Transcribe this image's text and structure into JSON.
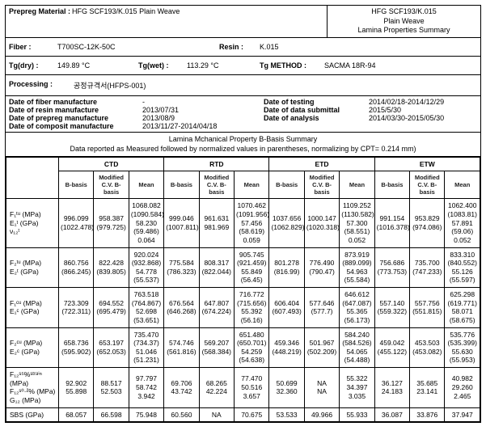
{
  "header": {
    "prepreg_label": "Prepreg Material :",
    "prepreg_value": "HFG SCF193/K.015 Plain Weave",
    "top_right_line1": "HFG SCF193/K.015",
    "top_right_line2": "Plain Weave",
    "top_right_line3": "Lamina Properties Summary",
    "fiber_label": "Fiber  :",
    "fiber_value": "T700SC-12K-50C",
    "resin_label": "Resin :",
    "resin_value": "K.015",
    "tg_dry_label": "Tg(dry) :",
    "tg_dry_value": "149.89 °C",
    "tg_wet_label": "Tg(wet) :",
    "tg_wet_value": "113.29 °C",
    "tg_method_label": "Tg METHOD :",
    "tg_method_value": "SACMA 18R-94",
    "processing_label": "Processing :",
    "processing_value": "공정규격서(HFPS-001)"
  },
  "dates": {
    "fiber_mfg_label": "Date of fiber manufacture",
    "fiber_mfg_value": "-",
    "resin_mfg_label": "Date of resin manufacture",
    "resin_mfg_value": "2013/07/31",
    "prepreg_mfg_label": "Date of prepreg manufacture",
    "prepreg_mfg_value": "2013/08/9",
    "composit_mfg_label": "Date of composit manufacture",
    "composit_mfg_value": "2013/11/27-2014/04/18",
    "testing_label": "Date of testing",
    "testing_value": "2014/02/18-2014/12/29",
    "submittal_label": "Date of data submittal",
    "submittal_value": "2015/5/30",
    "analysis_label": "Date of analysis",
    "analysis_value": "2014/03/30-2015/05/30"
  },
  "summary_title": "Lamina Mchanical Property B-Basis Summary",
  "summary_sub": "Data reported as Measured followed by normalized values in parentheses, normalizing by CPT= 0.214 mm)",
  "env_headers": [
    "CTD",
    "RTD",
    "ETD",
    "ETW"
  ],
  "sub_headers": [
    "B-basis",
    "Modified C.V. B-basis",
    "Mean"
  ],
  "rows": [
    {
      "labels": [
        "F₁ᵗᵘ (MPa)",
        "E₁ᵗ (GPa)",
        "ν₁₂ᵗ"
      ],
      "cells": [
        [
          "996.099",
          "(1022.478)"
        ],
        [
          "958.387",
          "(979.725)"
        ],
        [
          "1068.082",
          "(1090.584)",
          "58.230",
          "(59.486)",
          "0.064"
        ],
        [
          "999.046",
          "(1007.811)"
        ],
        [
          "961.631",
          "981.969"
        ],
        [
          "1070.462",
          "(1091.956)",
          "57.456",
          "(58.619)",
          "0.059"
        ],
        [
          "1037.656",
          "(1062.829)"
        ],
        [
          "1000.147",
          "(1020.318)"
        ],
        [
          "1109.252",
          "(1130.582)",
          "57.300",
          "(58.551)",
          "0.052"
        ],
        [
          "991.154",
          "(1016.378)"
        ],
        [
          "953.829",
          "(974.086)"
        ],
        [
          "1062.400",
          "(1083.81)",
          "57.891",
          "(59.06)",
          "0.052"
        ]
      ]
    },
    {
      "labels": [
        "F₂ᵗᵘ (MPa)",
        "E₂ᵗ (GPa)"
      ],
      "cells": [
        [
          "860.756",
          "(866.245)"
        ],
        [
          "822.428",
          "(839.805)"
        ],
        [
          "920.024",
          "(932.868)",
          "54.778",
          "(55.537)"
        ],
        [
          "775.584",
          "(786.323)"
        ],
        [
          "808.317",
          "(822.044)"
        ],
        [
          "905.745",
          "(921.459)",
          "55.849",
          "(56.45)"
        ],
        [
          "801.278",
          "(816.99)"
        ],
        [
          "776.490",
          "(790.47)"
        ],
        [
          "873.919",
          "(889.099)",
          "54.963",
          "(55.584)"
        ],
        [
          "756.686",
          "(773.753)"
        ],
        [
          "735.700",
          "(747.233)"
        ],
        [
          "833.310",
          "(840.552)",
          "55.126",
          "(55.597)"
        ]
      ]
    },
    {
      "labels": [
        "F₁ᶜᵘ (MPa)",
        "E₁ᶜ (GPa)"
      ],
      "cells": [
        [
          "723.309",
          "(722.311)"
        ],
        [
          "694.552",
          "(695.479)"
        ],
        [
          "763.518",
          "(764.867)",
          "52.698",
          "(53.651)"
        ],
        [
          "676.564",
          "(646.268)"
        ],
        [
          "647.807",
          "(674.224)"
        ],
        [
          "716.772",
          "(715.656)",
          "55.392",
          "(56.16)"
        ],
        [
          "606.404",
          "(607.493)"
        ],
        [
          "577.646",
          "(577.7)"
        ],
        [
          "646.612",
          "(647.087)",
          "55.365",
          "(56.173)"
        ],
        [
          "557.140",
          "(559.322)"
        ],
        [
          "557.756",
          "(551.815)"
        ],
        [
          "625.298",
          "(619.771)",
          "58.071",
          "(58.675)"
        ]
      ]
    },
    {
      "labels": [
        "F₂ᶜᵘ (MPa)",
        "E₂ᶜ (GPa)"
      ],
      "cells": [
        [
          "658.736",
          "(595.902)"
        ],
        [
          "653.197",
          "(652.053)"
        ],
        [
          "735.470",
          "(734.37)",
          "51.046",
          "(51.231)"
        ],
        [
          "574.746",
          "(561.816)"
        ],
        [
          "569.207",
          "(568.384)"
        ],
        [
          "651.480",
          "(650.701)",
          "54.259",
          "(54.638)"
        ],
        [
          "459.346",
          "(448.219)"
        ],
        [
          "501.967",
          "(502.209)"
        ],
        [
          "584.240",
          "(584.526)",
          "54.065",
          "(54.488)"
        ],
        [
          "459.042",
          "(455.122)"
        ],
        [
          "453.503",
          "(453.082)"
        ],
        [
          "535.776",
          "(535.399)",
          "55.630",
          "(55.953)"
        ]
      ]
    },
    {
      "labels": [
        "F₁₂ˢ⁵%ˢᵗʳᵃⁱⁿ (MPa)",
        "F₁₂ˢ⁰·²% (MPa)",
        "G₁₂ (MPa)"
      ],
      "cells": [
        [
          "92.902",
          "55.898",
          " "
        ],
        [
          "88.517",
          "52.503",
          " "
        ],
        [
          "97.797",
          "58.742",
          "3.942"
        ],
        [
          "69.706",
          "43.742",
          " "
        ],
        [
          "68.265",
          "42.224",
          " "
        ],
        [
          "77.470",
          "50.516",
          "3.657"
        ],
        [
          "50.699",
          "32.360",
          " "
        ],
        [
          "NA",
          "NA",
          " "
        ],
        [
          "55.322",
          "34.397",
          "3.035"
        ],
        [
          "36.127",
          "24.183",
          " "
        ],
        [
          "35.685",
          "23.141",
          " "
        ],
        [
          "40.982",
          "29.260",
          "2.465"
        ]
      ]
    },
    {
      "labels": [
        "SBS (GPa)"
      ],
      "cells": [
        [
          "68.057"
        ],
        [
          "66.598"
        ],
        [
          "75.948"
        ],
        [
          "60.560"
        ],
        [
          "NA"
        ],
        [
          "70.675"
        ],
        [
          "53.533"
        ],
        [
          "49.966"
        ],
        [
          "55.933"
        ],
        [
          "36.087"
        ],
        [
          "33.876"
        ],
        [
          "37.947"
        ]
      ]
    }
  ]
}
